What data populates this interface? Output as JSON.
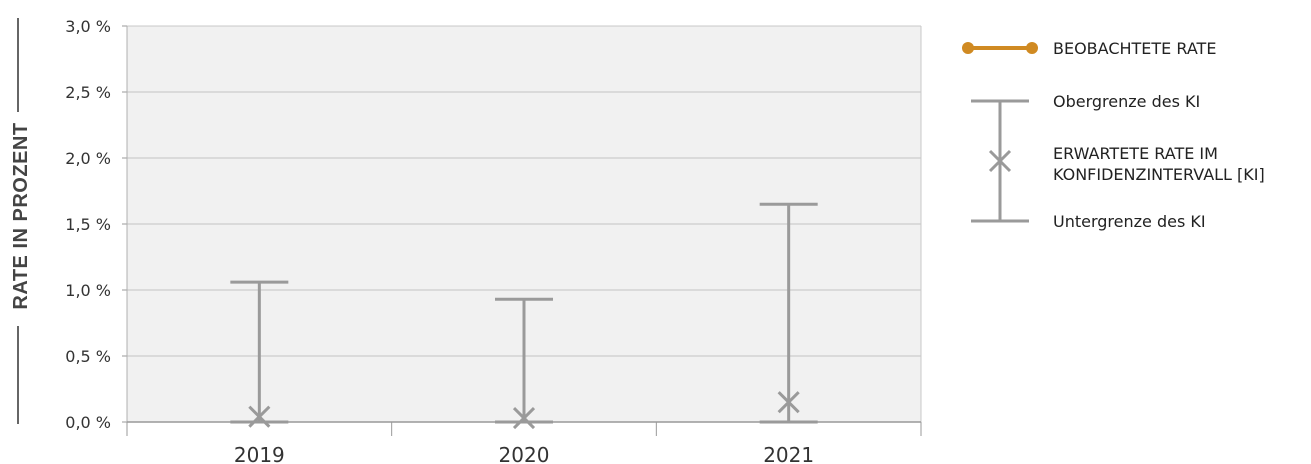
{
  "chart_data": {
    "type": "errorbar",
    "ylabel": "RATE IN PROZENT",
    "ylim": [
      0,
      3.0
    ],
    "ytick_labels": [
      "0,0 %",
      "0,5 %",
      "1,0 %",
      "1,5 %",
      "2,0 %",
      "2,5 %",
      "3,0 %"
    ],
    "categories": [
      "2019",
      "2020",
      "2021"
    ],
    "series": [
      {
        "name": "ERWARTETE RATE IM KONFIDENZINTERVALL [KI]",
        "values": [
          0.04,
          0.03,
          0.15
        ],
        "upper": [
          1.06,
          0.93,
          1.65
        ],
        "lower": [
          0.0,
          0.0,
          0.0
        ]
      }
    ],
    "grid": true,
    "legend_position": "right",
    "legend": {
      "observed": "BEOBACHTETE RATE",
      "upper": "Obergrenze des KI",
      "expected_line1": "ERWARTETE RATE IM",
      "expected_line2": "KONFIDENZINTERVALL [KI]",
      "lower": "Untergrenze des KI"
    },
    "colors": {
      "observed": "#d08a22",
      "ci": "#9a9a9a",
      "plot_bg": "#f1f1f1",
      "grid": "#c4c4c4"
    }
  }
}
